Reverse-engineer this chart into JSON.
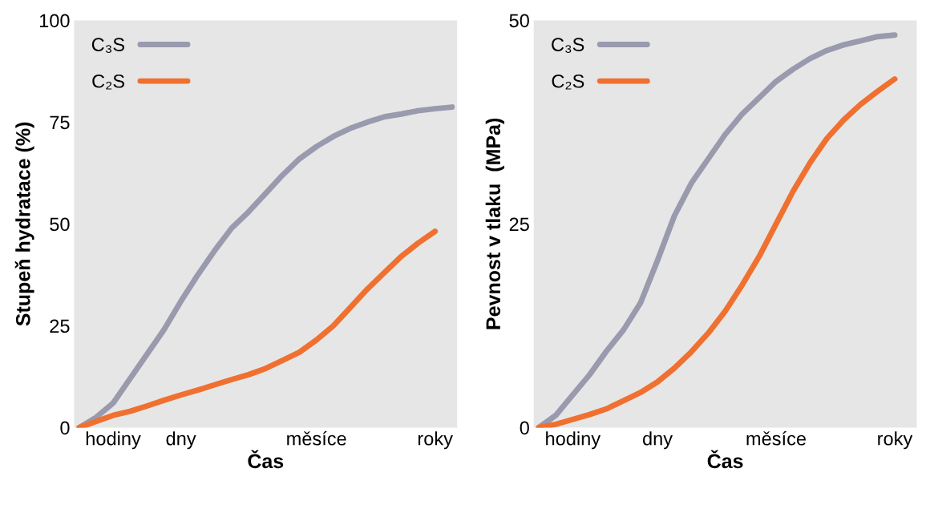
{
  "chart_data": [
    {
      "type": "line",
      "xlabel": "Čas",
      "ylabel": "Stupeň hydratace (%)",
      "ylim": [
        0,
        100
      ],
      "categories": [
        null,
        null,
        "hodiny",
        null,
        null,
        null,
        "dny",
        null,
        null,
        null,
        null,
        null,
        null,
        null,
        "měsíce",
        null,
        null,
        null,
        null,
        null,
        null,
        "roky",
        null
      ],
      "yticks": [
        0,
        25,
        50,
        75,
        100
      ],
      "grid": false,
      "legend": "top left",
      "marker": "none",
      "line_style": "solid",
      "series": [
        {
          "name": "C₃S",
          "color": "#9a9aae",
          "values": [
            0,
            2.5,
            6,
            12,
            18,
            24,
            31,
            37.5,
            43.5,
            49,
            53,
            57.5,
            62,
            66,
            69,
            71.5,
            73.5,
            75,
            76.3,
            77,
            77.8,
            78.3,
            78.7
          ]
        },
        {
          "name": "C₂S",
          "color": "#f07030",
          "values": [
            0,
            1.5,
            3,
            4,
            5.3,
            6.7,
            8,
            9.2,
            10.5,
            11.8,
            13,
            14.5,
            16.5,
            18.5,
            21.5,
            25,
            29.5,
            34,
            38,
            42,
            45.3,
            48.2,
            null
          ]
        }
      ]
    },
    {
      "type": "line",
      "xlabel": "Čas",
      "ylabel": "Pevnost v tlaku  (MPa)",
      "ylim": [
        0,
        50
      ],
      "categories": [
        null,
        null,
        "hodiny",
        null,
        null,
        null,
        null,
        "dny",
        null,
        null,
        null,
        null,
        null,
        null,
        "měsíce",
        null,
        null,
        null,
        null,
        null,
        null,
        "roky",
        null
      ],
      "yticks": [
        0,
        25,
        50
      ],
      "grid": false,
      "legend": "top left",
      "marker": "none",
      "line_style": "solid",
      "series": [
        {
          "name": "C₃S",
          "color": "#9a9aae",
          "values": [
            0,
            1.5,
            4,
            6.5,
            9.4,
            12,
            15.3,
            20.5,
            26,
            30,
            33,
            36,
            38.5,
            40.5,
            42.5,
            44,
            45.3,
            46.3,
            47,
            47.5,
            48,
            48.2,
            null
          ]
        },
        {
          "name": "C₂S",
          "color": "#f07030",
          "values": [
            0,
            0.4,
            1,
            1.6,
            2.3,
            3.3,
            4.3,
            5.6,
            7.3,
            9.3,
            11.6,
            14.3,
            17.5,
            21,
            25,
            29,
            32.5,
            35.5,
            37.8,
            39.7,
            41.3,
            42.8,
            null
          ]
        }
      ]
    }
  ]
}
